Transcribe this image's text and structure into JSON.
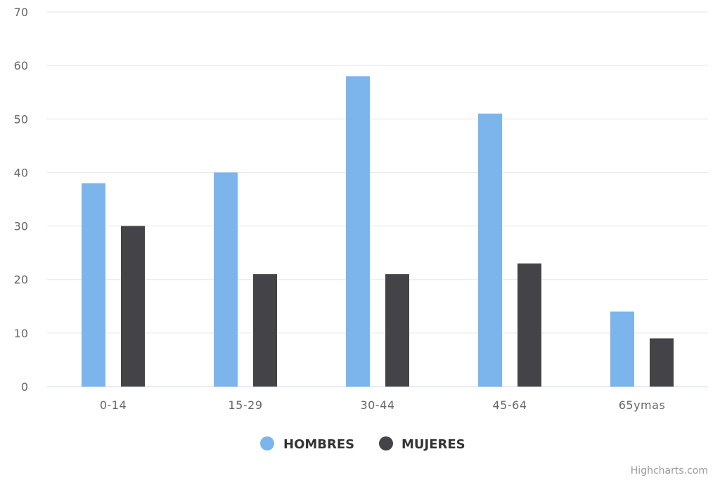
{
  "chart_data": {
    "type": "bar",
    "categories": [
      "0-14",
      "15-29",
      "30-44",
      "45-64",
      "65ymas"
    ],
    "series": [
      {
        "name": "HOMBRES",
        "color": "#7cb5ec",
        "values": [
          38,
          40,
          58,
          51,
          14
        ]
      },
      {
        "name": "MUJERES",
        "color": "#434348",
        "values": [
          30,
          21,
          21,
          23,
          9
        ]
      }
    ],
    "ylim": [
      0,
      70
    ],
    "yticks": [
      0,
      10,
      20,
      30,
      40,
      50,
      60,
      70
    ],
    "grid": true,
    "legend_position": "bottom-center"
  },
  "credits": "Highcharts.com",
  "colors": {
    "grid": "#e6e6e6",
    "axis_line": "#ccd6eb",
    "tick_text": "#666666"
  }
}
